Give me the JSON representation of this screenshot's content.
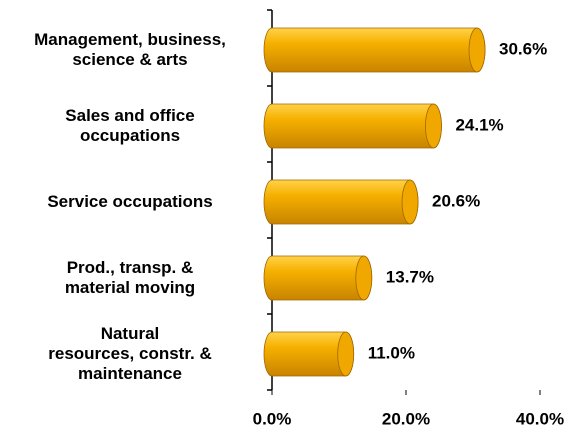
{
  "chart_data": {
    "type": "bar",
    "orientation": "horizontal",
    "categories": [
      "Management, business,\nscience & arts",
      "Sales and office\noccupations",
      "Service occupations",
      "Prod., transp. &\nmaterial moving",
      "Natural\nresources, constr. &\nmaintenance"
    ],
    "values": [
      30.6,
      24.1,
      20.6,
      13.7,
      11.0
    ],
    "value_labels": [
      "30.6%",
      "24.1%",
      "20.6%",
      "13.7%",
      "11.0%"
    ],
    "color": "#f0a800",
    "xlim": [
      0,
      40
    ],
    "xticks": [
      {
        "value": 0,
        "label": "0.0%"
      },
      {
        "value": 20,
        "label": "20.0%"
      },
      {
        "value": 40,
        "label": "40.0%"
      }
    ],
    "grid": false
  }
}
